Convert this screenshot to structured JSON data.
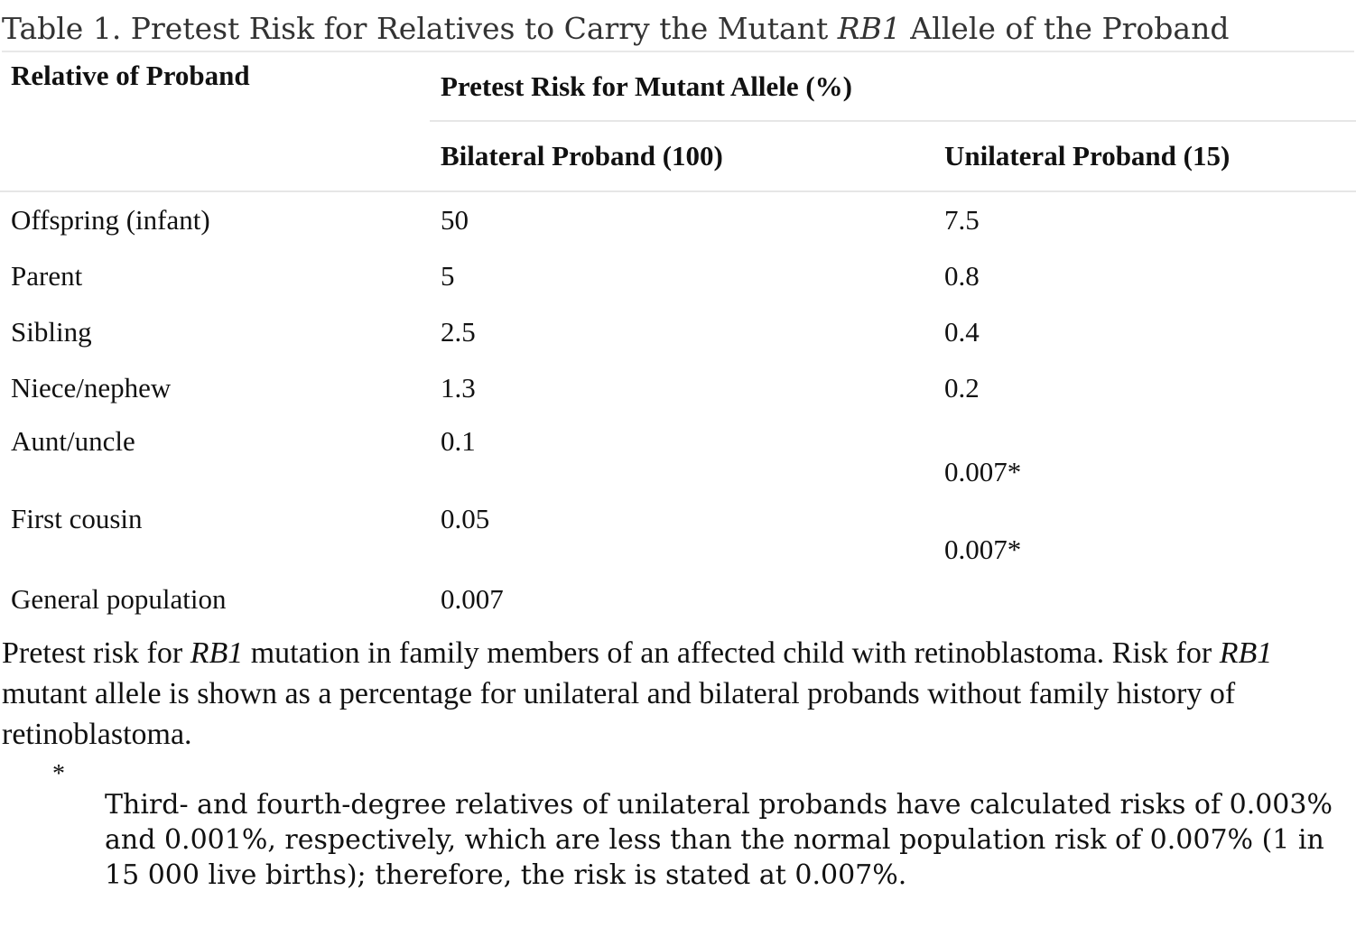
{
  "caption": {
    "prefix": "Table 1. Pretest Risk for Relatives to Carry the Mutant ",
    "gene": "RB1",
    "suffix": " Allele of the Proband"
  },
  "table": {
    "col_relative": "Relative of Proband",
    "col_group": "Pretest Risk for Mutant Allele (%)",
    "col_bilateral": "Bilateral Proband (100)",
    "col_unilateral": "Unilateral Proband (15)",
    "rows": [
      {
        "relative": "Offspring (infant)",
        "bilateral": "50",
        "unilateral": "7.5"
      },
      {
        "relative": "Parent",
        "bilateral": "5",
        "unilateral": "0.8"
      },
      {
        "relative": "Sibling",
        "bilateral": "2.5",
        "unilateral": "0.4"
      },
      {
        "relative": "Niece/nephew",
        "bilateral": "1.3",
        "unilateral": "0.2"
      },
      {
        "relative": "Aunt/uncle",
        "bilateral": "0.1",
        "unilateral": "0.007*"
      },
      {
        "relative": "First cousin",
        "bilateral": "0.05",
        "unilateral": "0.007*"
      },
      {
        "relative": "General population",
        "bilateral": "0.007",
        "unilateral": ""
      }
    ]
  },
  "description": {
    "p1": "Pretest risk for ",
    "gene1": "RB1",
    "p2": " mutation in family members of an affected child with retinoblastoma. Risk for ",
    "gene2": "RB1",
    "p3": " mutant allele is shown as a percentage for unilateral and bilateral probands without family history of retinoblastoma."
  },
  "footnote": {
    "mark": "*",
    "text": "Third- and fourth-degree relatives of unilateral probands have calculated risks of 0.003% and 0.001%, respectively, which are less than the normal population risk of 0.007% (1 in 15 000 live births); therefore, the risk is stated at 0.007%."
  }
}
